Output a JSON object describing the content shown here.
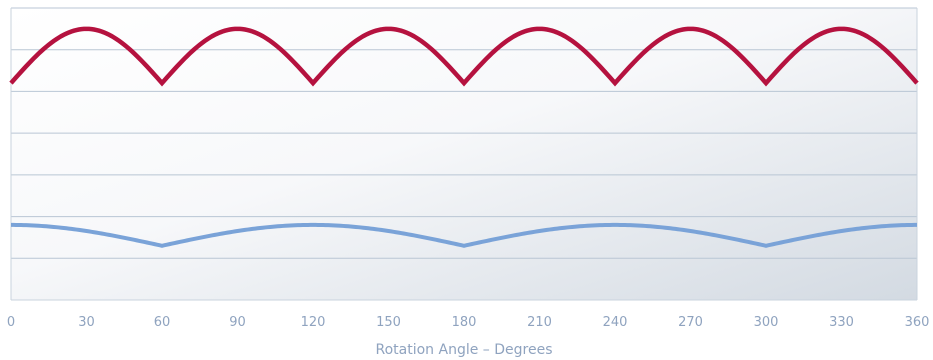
{
  "chart_data": {
    "type": "line",
    "title": "",
    "xlabel": "Rotation Angle – Degrees",
    "ylabel": "",
    "xlim": [
      0,
      360
    ],
    "ylim": [
      0,
      7
    ],
    "grid": true,
    "x_ticks": [
      0,
      30,
      60,
      90,
      120,
      150,
      180,
      210,
      240,
      270,
      300,
      330,
      360
    ],
    "series": [
      {
        "color": "#b5123f",
        "shape": "abs-sine",
        "period": 60,
        "min": 5.2,
        "max": 6.5,
        "x": [
          0,
          10,
          20,
          30,
          40,
          50,
          60,
          70,
          80,
          90,
          100,
          110,
          120,
          130,
          140,
          150,
          160,
          170,
          180,
          190,
          200,
          210,
          220,
          230,
          240,
          250,
          260,
          270,
          280,
          290,
          300,
          310,
          320,
          330,
          340,
          350,
          360
        ],
        "values": [
          5.2,
          5.85,
          6.33,
          6.5,
          6.33,
          5.85,
          5.2,
          5.85,
          6.33,
          6.5,
          6.33,
          5.85,
          5.2,
          5.85,
          6.33,
          6.5,
          6.33,
          5.85,
          5.2,
          5.85,
          6.33,
          6.5,
          6.33,
          5.85,
          5.2,
          5.85,
          6.33,
          6.5,
          6.33,
          5.85,
          5.2,
          5.85,
          6.33,
          6.5,
          6.33,
          5.85,
          5.2
        ]
      },
      {
        "color": "#7aa3d8",
        "shape": "abs-sine",
        "period": 120,
        "phase": 60,
        "min": 1.3,
        "max": 1.8,
        "x": [
          0,
          20,
          40,
          60,
          80,
          100,
          120,
          140,
          160,
          180,
          200,
          220,
          240,
          260,
          280,
          300,
          320,
          340,
          360
        ],
        "values": [
          1.8,
          1.71,
          1.55,
          1.3,
          1.55,
          1.71,
          1.8,
          1.71,
          1.55,
          1.3,
          1.55,
          1.71,
          1.8,
          1.71,
          1.55,
          1.3,
          1.55,
          1.71,
          1.8
        ]
      }
    ],
    "colors": {
      "background_light": "#ffffff",
      "background_dark": "#d7dde4",
      "grid": "#b9c6d4",
      "axis": "#c9d3de",
      "text": "#8fa3bf"
    }
  }
}
